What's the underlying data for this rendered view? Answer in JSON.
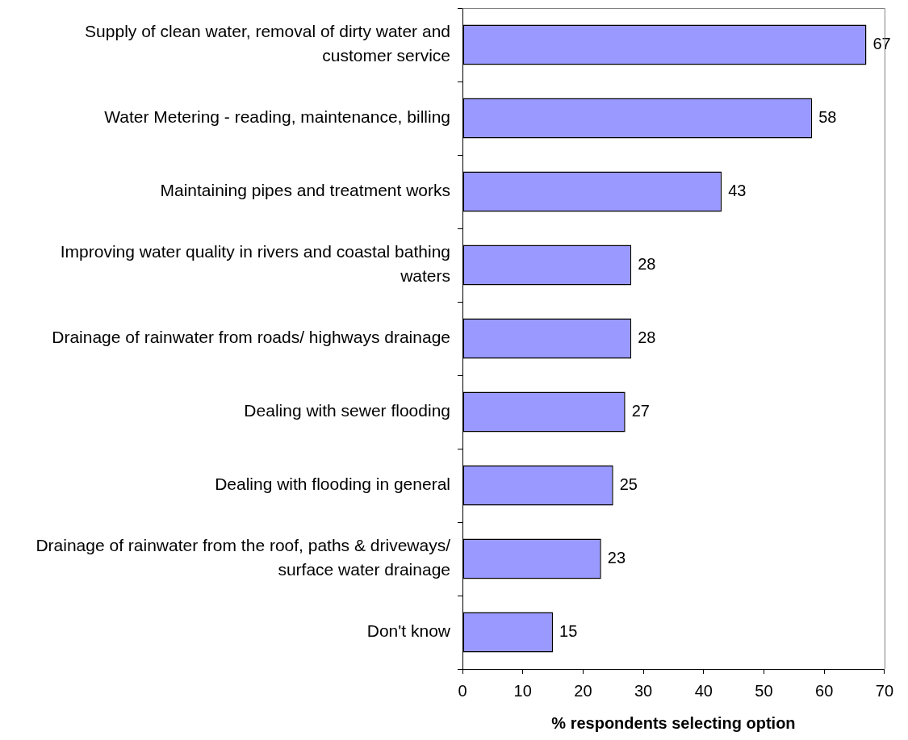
{
  "chart_data": {
    "type": "bar",
    "orientation": "horizontal",
    "categories": [
      "Supply of clean water, removal of dirty water and customer service",
      "Water Metering - reading, maintenance, billing",
      "Maintaining pipes and treatment works",
      "Improving water quality in rivers and coastal bathing waters",
      "Drainage of rainwater from roads/ highways drainage",
      "Dealing with sewer flooding",
      "Dealing with flooding in general",
      "Drainage of rainwater from the roof, paths & driveways/ surface water drainage",
      "Don't know"
    ],
    "values": [
      67,
      58,
      43,
      28,
      28,
      27,
      25,
      23,
      15
    ],
    "color": "#9999ff",
    "data_labels": true,
    "xlabel": "% respondents selecting option",
    "xlim": [
      0,
      70
    ],
    "xticks": [
      0,
      10,
      20,
      30,
      40,
      50,
      60,
      70
    ]
  }
}
